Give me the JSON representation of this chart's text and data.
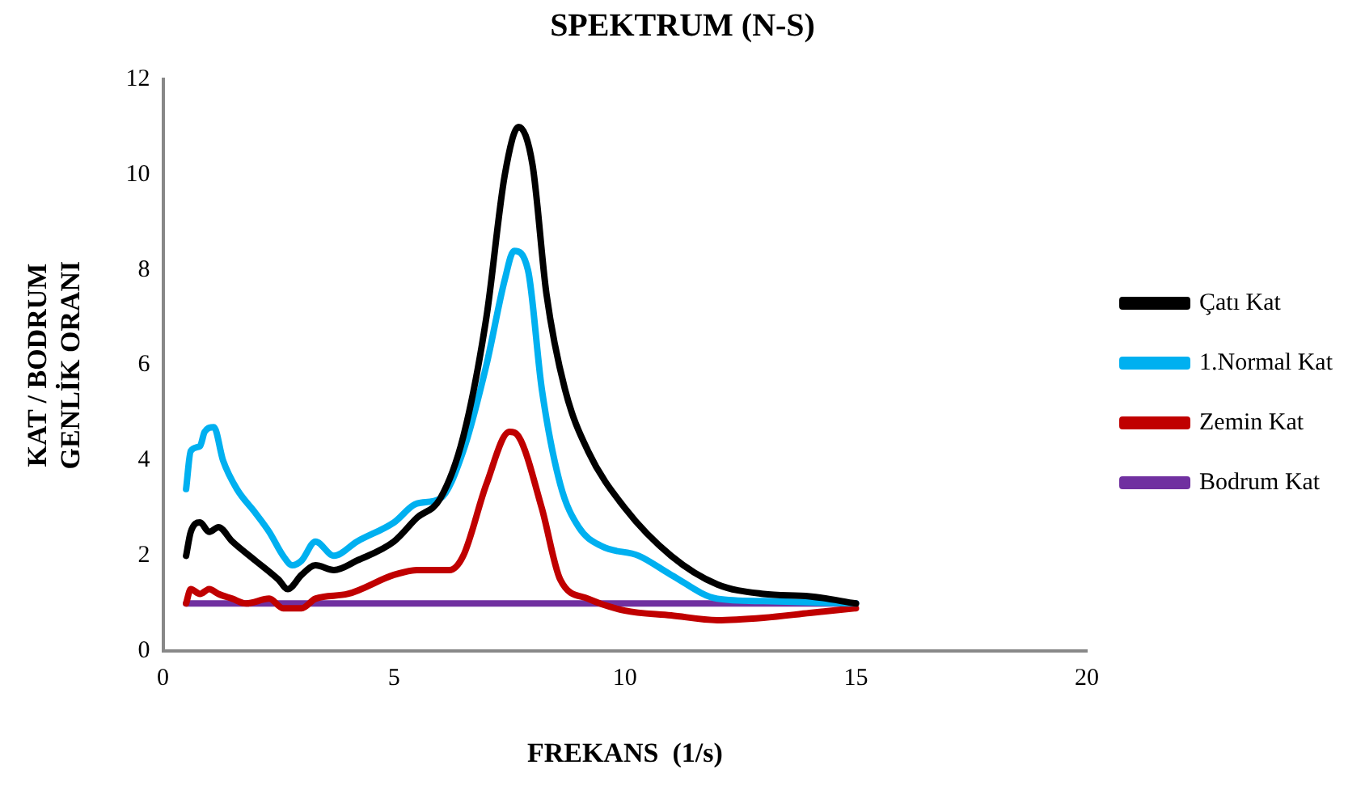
{
  "chart_data": {
    "type": "line",
    "title": "SPEKTRUM (N-S)",
    "xlabel": "FREKANS  (1/s)",
    "ylabel": "KAT / BODRUM\nGENLİK ORANI",
    "xlim": [
      0,
      20
    ],
    "xticks": [
      0,
      5,
      10,
      15,
      20
    ],
    "ylim": [
      0,
      12
    ],
    "yticks": [
      0,
      2,
      4,
      6,
      8,
      10,
      12
    ],
    "grid": false,
    "legend": "right",
    "marker": "none",
    "line_style": "solid",
    "series": [
      {
        "name": "Çatı Kat",
        "color": "#000000",
        "x": [
          0.5,
          0.6,
          0.8,
          1.0,
          1.2,
          1.5,
          2.0,
          2.5,
          2.7,
          3.0,
          3.3,
          3.7,
          4.2,
          5,
          5.5,
          6,
          6.5,
          7,
          7.4,
          7.7,
          8.0,
          8.3,
          8.7,
          9.2,
          10,
          11,
          12,
          13,
          14,
          15
        ],
        "values": [
          2.0,
          2.5,
          2.7,
          2.5,
          2.6,
          2.3,
          1.9,
          1.5,
          1.3,
          1.6,
          1.8,
          1.7,
          1.9,
          2.3,
          2.8,
          3.2,
          4.5,
          7,
          10,
          11,
          10.2,
          7.5,
          5.5,
          4.2,
          3,
          2,
          1.4,
          1.2,
          1.15,
          1.0
        ]
      },
      {
        "name": "1.Normal Kat",
        "color": "#00b0f0",
        "x": [
          0.5,
          0.6,
          0.8,
          0.9,
          1.1,
          1.3,
          1.6,
          2.0,
          2.3,
          2.6,
          2.8,
          3.0,
          3.3,
          3.7,
          4.2,
          5,
          5.5,
          6,
          6.5,
          7,
          7.4,
          7.6,
          7.9,
          8.2,
          8.6,
          9.0,
          9.5,
          10.3,
          11,
          12,
          13,
          15
        ],
        "values": [
          3.4,
          4.2,
          4.3,
          4.6,
          4.7,
          4.0,
          3.4,
          2.9,
          2.5,
          2.0,
          1.8,
          1.9,
          2.3,
          2.0,
          2.3,
          2.7,
          3.1,
          3.2,
          4.2,
          6,
          7.8,
          8.4,
          8.0,
          5.5,
          3.5,
          2.6,
          2.2,
          2.0,
          1.6,
          1.1,
          1.05,
          1.0
        ]
      },
      {
        "name": "Zemin Kat",
        "color": "#c00000",
        "x": [
          0.5,
          0.6,
          0.8,
          1.0,
          1.2,
          1.5,
          1.8,
          2.3,
          2.6,
          3.0,
          3.3,
          4,
          5,
          5.5,
          6.2,
          6.5,
          7,
          7.5,
          7.7,
          8.2,
          8.6,
          9.2,
          10,
          11,
          12,
          13,
          14,
          15
        ],
        "values": [
          1.0,
          1.3,
          1.2,
          1.3,
          1.2,
          1.1,
          1.0,
          1.1,
          0.9,
          0.9,
          1.1,
          1.2,
          1.6,
          1.7,
          1.7,
          2.0,
          3.5,
          4.6,
          4.5,
          3,
          1.5,
          1.1,
          0.85,
          0.75,
          0.65,
          0.7,
          0.8,
          0.9
        ]
      },
      {
        "name": "Bodrum Kat",
        "color": "#7030a0",
        "x": [
          0.5,
          15
        ],
        "values": [
          1,
          1
        ]
      }
    ]
  }
}
